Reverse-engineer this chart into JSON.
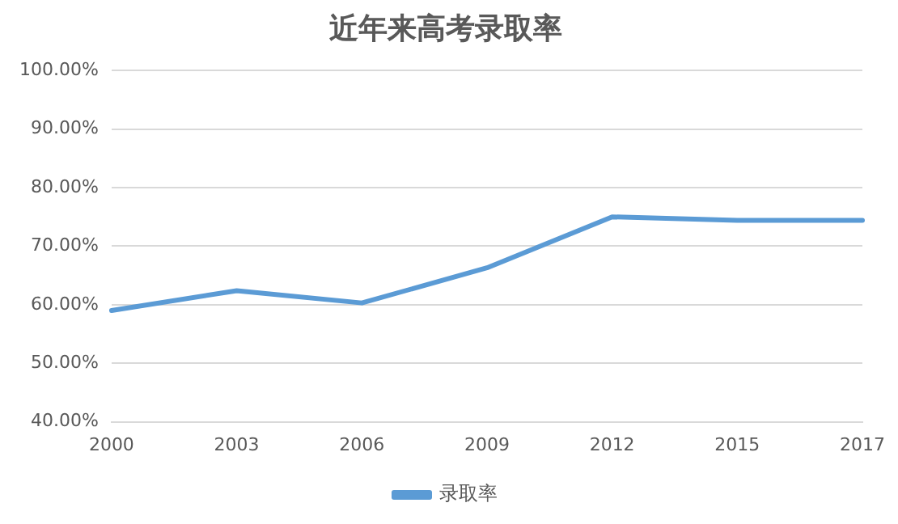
{
  "chart_data": {
    "type": "line",
    "title": "近年来高考录取率",
    "categories": [
      "2000",
      "2003",
      "2006",
      "2009",
      "2012",
      "2015",
      "2017"
    ],
    "series": [
      {
        "name": "录取率",
        "color": "#5b9bd5",
        "values": [
          59.0,
          62.4,
          60.3,
          66.3,
          75.0,
          74.4,
          74.4
        ]
      }
    ],
    "ylim": [
      40,
      100
    ],
    "yticks": [
      {
        "value": 40,
        "label": "40.00%"
      },
      {
        "value": 50,
        "label": "50.00%"
      },
      {
        "value": 60,
        "label": "60.00%"
      },
      {
        "value": 70,
        "label": "70.00%"
      },
      {
        "value": 80,
        "label": "80.00%"
      },
      {
        "value": 90,
        "label": "90.00%"
      },
      {
        "value": 100,
        "label": "100.00%"
      }
    ],
    "grid": "y",
    "legend": "bottom",
    "marker": "none",
    "line_style": "solid"
  }
}
